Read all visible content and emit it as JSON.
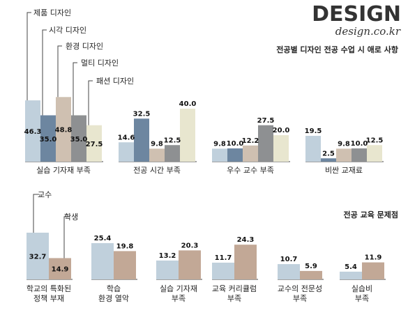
{
  "brand": {
    "logo_word": "DESIGN",
    "logo_sub": "design.co.kr"
  },
  "colors": {
    "light_blue": "#c0d0dc",
    "slate_blue": "#6d86a0",
    "beige": "#cfc0b1",
    "gray": "#8e9092",
    "cream": "#e8e6cf",
    "tan": "#c2a896",
    "rule": "#444444"
  },
  "chart_data": [
    {
      "type": "bar",
      "title": "전공별 디자인 전공 수업 시 애로 사항",
      "categories": [
        "실습 기자재 부족",
        "전공 시간 부족",
        "우수 교수 부족",
        "비싼 교재료"
      ],
      "series": [
        {
          "name": "제품 디자인",
          "color": "#c0d0dc",
          "values": [
            46.3,
            14.6,
            9.8,
            19.5
          ]
        },
        {
          "name": "시각 디자인",
          "color": "#6d86a0",
          "values": [
            35.0,
            32.5,
            10.0,
            2.5
          ]
        },
        {
          "name": "환경 디자인",
          "color": "#cfc0b1",
          "values": [
            48.8,
            9.8,
            12.2,
            9.8
          ]
        },
        {
          "name": "멀티 디자인",
          "color": "#8e9092",
          "values": [
            35.0,
            12.5,
            27.5,
            10.0
          ]
        },
        {
          "name": "패션 디자인",
          "color": "#e8e6cf",
          "values": [
            27.5,
            40.0,
            20.0,
            12.5
          ]
        }
      ],
      "ylim": [
        0,
        50
      ],
      "legend": "callout labels above the first category",
      "grid": false
    },
    {
      "type": "bar",
      "title": "전공 교육 문제점",
      "categories": [
        "학교의 특화된\n정책 부재",
        "학습\n환경 열악",
        "실습 기자재\n부족",
        "교육 커리큘럼\n부족",
        "교수의 전문성\n부족",
        "실습비\n부족"
      ],
      "series": [
        {
          "name": "교수",
          "color": "#c0d0dc",
          "values": [
            32.7,
            25.4,
            13.2,
            11.7,
            10.7,
            5.4
          ]
        },
        {
          "name": "학생",
          "color": "#c2a896",
          "values": [
            14.9,
            19.8,
            20.3,
            24.3,
            5.9,
            11.9
          ]
        }
      ],
      "ylim": [
        0,
        35
      ],
      "legend": "callout labels above the first category",
      "grid": false
    }
  ]
}
